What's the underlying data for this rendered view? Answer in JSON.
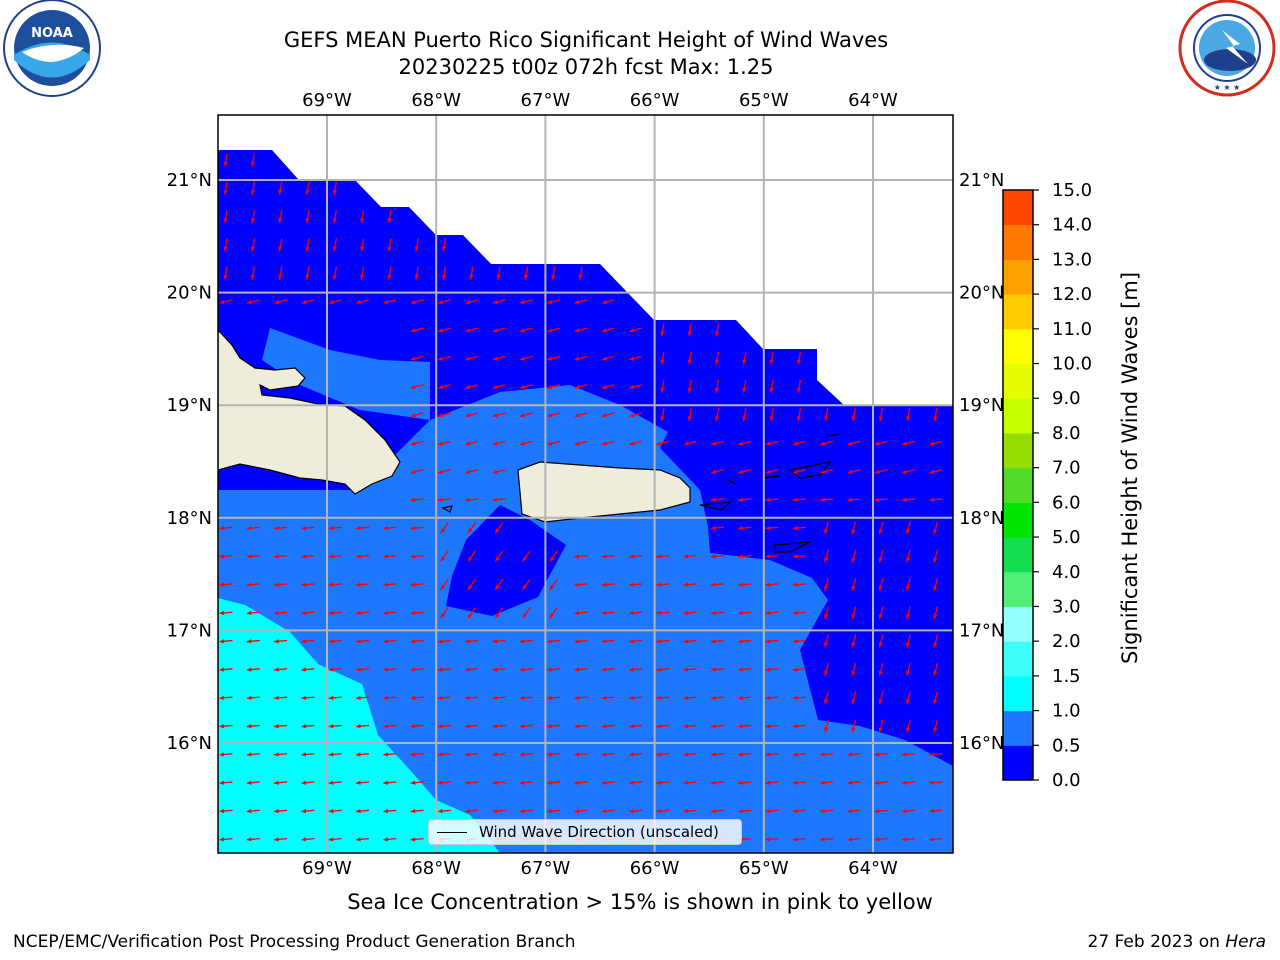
{
  "header": {
    "title_line1": "GEFS MEAN Puerto Rico Significant Height of Wind Waves",
    "title_line2": "20230225 t00z 072h fcst   Max: 1.25"
  },
  "logos": {
    "noaa_left": "NOAA",
    "noaa_ring": "NATIONAL OCEANIC AND ATMOSPHERIC ADMINISTRATION · U.S. DEPARTMENT OF COMMERCE",
    "nws_ring": "NATIONAL WEATHER SERVICE"
  },
  "map": {
    "lon_labels": [
      "69°W",
      "68°W",
      "67°W",
      "66°W",
      "65°W",
      "64°W"
    ],
    "lat_labels": [
      "21°N",
      "20°N",
      "19°N",
      "18°N",
      "17°N",
      "16°N"
    ],
    "lon_range": [
      -70.0,
      -63.25
    ],
    "lat_range": [
      15.0,
      21.6
    ],
    "legend_label": "Wind Wave Direction (unscaled)",
    "vector_color": "#ff0000",
    "land_color": "#efecdc"
  },
  "colorbar": {
    "title": "Significant Height of Wind Waves [m]",
    "ticks": [
      "0.0",
      "0.5",
      "1.0",
      "1.5",
      "2.0",
      "3.0",
      "4.0",
      "5.0",
      "6.0",
      "7.0",
      "8.0",
      "9.0",
      "10.0",
      "11.0",
      "12.0",
      "13.0",
      "14.0",
      "15.0"
    ],
    "colors": [
      "#0000ff",
      "#1e78ff",
      "#00ffff",
      "#3cfffa",
      "#96ffff",
      "#50f078",
      "#14dc50",
      "#00e600",
      "#50dc28",
      "#96dc00",
      "#c8ff00",
      "#e6ff00",
      "#ffff00",
      "#ffcc00",
      "#ffa000",
      "#ff7800",
      "#ff4600",
      "#ff1e00"
    ]
  },
  "footer": {
    "caption": "Sea Ice Concentration > 15% is shown in pink to yellow",
    "credit_left": "NCEP/EMC/Verification Post Processing Product Generation Branch",
    "credit_date": "27 Feb 2023 on ",
    "credit_host": "Hera"
  }
}
